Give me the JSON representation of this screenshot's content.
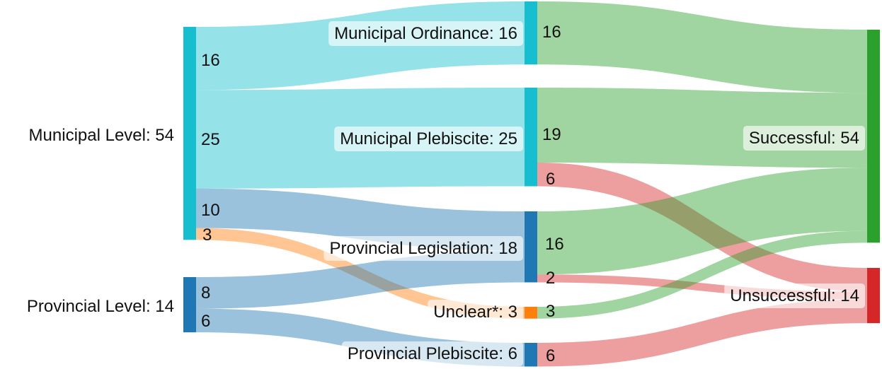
{
  "nodes": {
    "municipal_level": {
      "label": "Municipal Level: 54",
      "color": "#17becf"
    },
    "provincial_level": {
      "label": "Provincial Level: 14",
      "color": "#1f77b4"
    },
    "municipal_ordinance": {
      "label": "Municipal Ordinance: 16",
      "color": "#17becf"
    },
    "municipal_plebiscite": {
      "label": "Municipal Plebiscite: 25",
      "color": "#17becf"
    },
    "provincial_legislation": {
      "label": "Provincial Legislation: 18",
      "color": "#1f77b4"
    },
    "unclear": {
      "label": "Unclear*: 3",
      "color": "#ff7f0e"
    },
    "provincial_plebiscite": {
      "label": "Provincial Plebiscite: 6",
      "color": "#1f77b4"
    },
    "successful": {
      "label": "Successful: 54",
      "color": "#2ca02c"
    },
    "unsuccessful": {
      "label": "Unsuccessful: 14",
      "color": "#d62728"
    }
  },
  "links": [
    {
      "source": "municipal_level",
      "target": "municipal_ordinance",
      "value": 16,
      "label": "16",
      "color": "#17becf"
    },
    {
      "source": "municipal_level",
      "target": "municipal_plebiscite",
      "value": 25,
      "label": "25",
      "color": "#17becf"
    },
    {
      "source": "municipal_level",
      "target": "provincial_legislation",
      "value": 10,
      "label": "10",
      "color": "#1f77b4"
    },
    {
      "source": "municipal_level",
      "target": "unclear",
      "value": 3,
      "label": "3",
      "color": "#ff7f0e"
    },
    {
      "source": "provincial_level",
      "target": "provincial_legislation",
      "value": 8,
      "label": "8",
      "color": "#1f77b4"
    },
    {
      "source": "provincial_level",
      "target": "provincial_plebiscite",
      "value": 6,
      "label": "6",
      "color": "#1f77b4"
    },
    {
      "source": "municipal_ordinance",
      "target": "successful",
      "value": 16,
      "label": "16",
      "color": "#2ca02c"
    },
    {
      "source": "municipal_plebiscite",
      "target": "successful",
      "value": 19,
      "label": "19",
      "color": "#2ca02c"
    },
    {
      "source": "municipal_plebiscite",
      "target": "unsuccessful",
      "value": 6,
      "label": "6",
      "color": "#d62728"
    },
    {
      "source": "provincial_legislation",
      "target": "successful",
      "value": 16,
      "label": "16",
      "color": "#2ca02c"
    },
    {
      "source": "provincial_legislation",
      "target": "unsuccessful",
      "value": 2,
      "label": "2",
      "color": "#d62728"
    },
    {
      "source": "unclear",
      "target": "successful",
      "value": 3,
      "label": "3",
      "color": "#2ca02c"
    },
    {
      "source": "provincial_plebiscite",
      "target": "unsuccessful",
      "value": 6,
      "label": "6",
      "color": "#d62728"
    }
  ]
}
